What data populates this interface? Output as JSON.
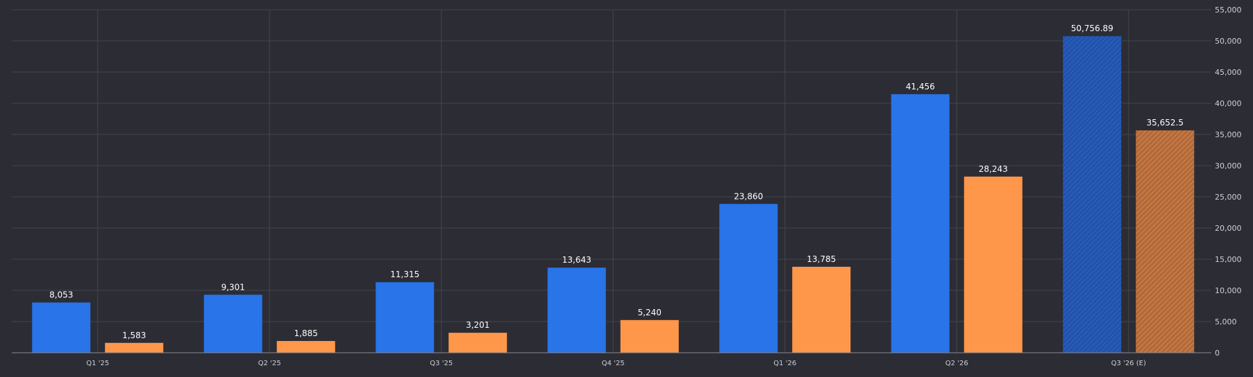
{
  "chart_data": {
    "type": "bar",
    "categories": [
      "Q1 '25",
      "Q2 '25",
      "Q3 '25",
      "Q4 '25",
      "Q1 '26",
      "Q2 '26",
      "Q3 '26 (E)"
    ],
    "series": [
      {
        "color": "#2874e8",
        "values": [
          8053,
          9301,
          11315,
          13643,
          23860,
          41456,
          50756.89
        ],
        "labels": [
          "8,053",
          "9,301",
          "11,315",
          "13,643",
          "23,860",
          "41,456",
          "50,756.89"
        ]
      },
      {
        "color": "#ff974a",
        "values": [
          1583,
          1885,
          3201,
          5240,
          13785,
          28243,
          35652.5
        ],
        "labels": [
          "1,583",
          "1,885",
          "3,201",
          "5,240",
          "13,785",
          "28,243",
          "35,652.5"
        ]
      }
    ],
    "estimated_categories": [
      "Q3 '26 (E)"
    ],
    "y_axis": {
      "position": "right",
      "ylim": [
        0,
        55000
      ],
      "ticks": [
        0,
        5000,
        10000,
        15000,
        20000,
        25000,
        30000,
        35000,
        40000,
        45000,
        50000,
        55000
      ],
      "tick_labels": [
        "0",
        "5,000",
        "10,000",
        "15,000",
        "20,000",
        "25,000",
        "30,000",
        "35,000",
        "40,000",
        "45,000",
        "50,000",
        "55,000"
      ]
    },
    "grid": true,
    "legend": "none",
    "colors": {
      "background": "#2c2c35",
      "grid": "#44444d",
      "axis": "#8a8a93",
      "text": "#ffffff",
      "tick_text": "#cfcfd6",
      "estimated_series_1": "#2452a8",
      "estimated_series_2": "#b06a3c"
    }
  }
}
